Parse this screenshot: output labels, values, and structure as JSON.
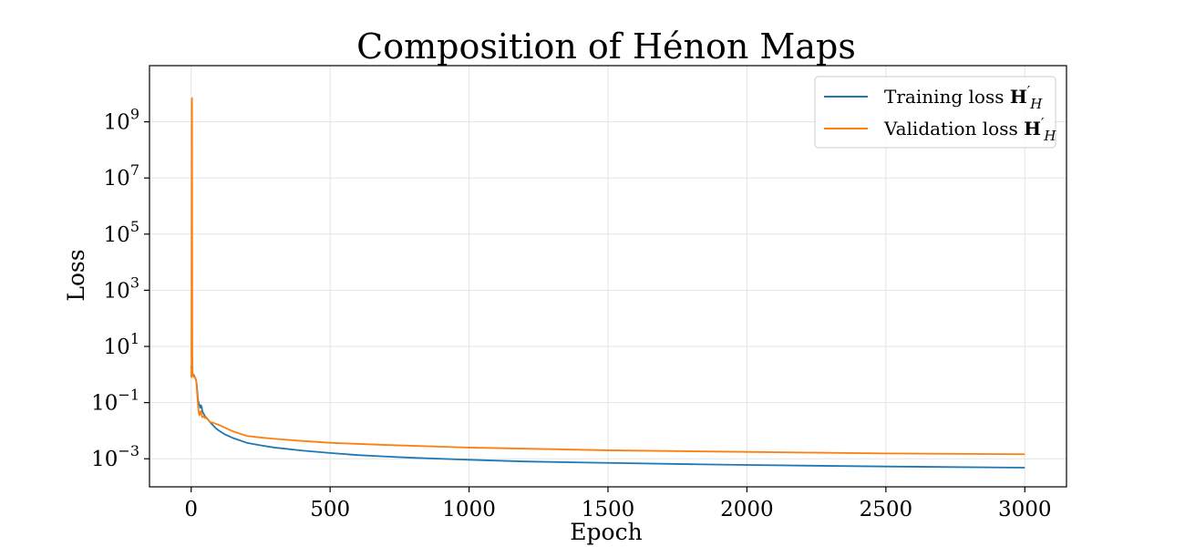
{
  "chart_data": {
    "type": "line",
    "title": "Composition of Hénon Maps",
    "xlabel": "Epoch",
    "ylabel": "Loss",
    "xlim": [
      -150,
      3150
    ],
    "ylim": [
      0.0001,
      100000000000
    ],
    "yscale": "log",
    "grid": true,
    "legend_position": "top-right",
    "x_ticks": [
      "0",
      "500",
      "1000",
      "1500",
      "2000",
      "2500",
      "3000"
    ],
    "y_ticks": [
      {
        "base": "10",
        "exp": "−3",
        "value": 0.001
      },
      {
        "base": "10",
        "exp": "−1",
        "value": 0.1
      },
      {
        "base": "10",
        "exp": "1",
        "value": 10
      },
      {
        "base": "10",
        "exp": "3",
        "value": 1000
      },
      {
        "base": "10",
        "exp": "5",
        "value": 100000
      },
      {
        "base": "10",
        "exp": "7",
        "value": 10000000
      },
      {
        "base": "10",
        "exp": "9",
        "value": 1000000000
      }
    ],
    "series": [
      {
        "name": "Training loss H′H",
        "legend": {
          "text": "Training loss ",
          "math": "H",
          "prime": "′",
          "sub": "H"
        },
        "color": "#1f77b4",
        "x": [
          0,
          1,
          2,
          3,
          5,
          8,
          10,
          12,
          15,
          18,
          20,
          22,
          25,
          28,
          30,
          33,
          35,
          38,
          40,
          42,
          45,
          48,
          50,
          55,
          60,
          65,
          70,
          80,
          90,
          100,
          120,
          150,
          200,
          250,
          300,
          400,
          500,
          600,
          700,
          800,
          1000,
          1200,
          1500,
          1800,
          2000,
          2500,
          3000
        ],
        "y": [
          2.0,
          1.6,
          1.3,
          1.1,
          1.0,
          1.0,
          0.95,
          0.85,
          0.75,
          0.6,
          0.45,
          0.25,
          0.12,
          0.09,
          0.08,
          0.065,
          0.08,
          0.07,
          0.05,
          0.045,
          0.04,
          0.035,
          0.032,
          0.028,
          0.025,
          0.022,
          0.019,
          0.015,
          0.012,
          0.01,
          0.0075,
          0.0055,
          0.0037,
          0.003,
          0.0025,
          0.00195,
          0.0016,
          0.00135,
          0.0012,
          0.00108,
          0.00092,
          0.0008,
          0.00071,
          0.00064,
          0.0006,
          0.00053,
          0.00048
        ]
      },
      {
        "name": "Validation loss H′H",
        "legend": {
          "text": "Validation loss ",
          "math": "H",
          "prime": "′",
          "sub": "H"
        },
        "color": "#ff7f0e",
        "x": [
          0,
          1,
          2,
          3,
          4,
          5,
          6,
          7,
          8,
          10,
          12,
          15,
          18,
          20,
          22,
          25,
          28,
          30,
          32,
          35,
          38,
          40,
          45,
          50,
          55,
          60,
          65,
          70,
          80,
          100,
          120,
          150,
          200,
          250,
          300,
          400,
          500,
          700,
          1000,
          1500,
          2000,
          2500,
          3000
        ],
        "y": [
          1.2,
          0.8,
          5000000000.0,
          7000000000.0,
          8.0,
          0.9,
          1.0,
          0.9,
          0.85,
          0.9,
          0.8,
          0.75,
          0.6,
          0.35,
          0.18,
          0.07,
          0.04,
          0.035,
          0.045,
          0.05,
          0.035,
          0.03,
          0.033,
          0.028,
          0.03,
          0.025,
          0.022,
          0.02,
          0.019,
          0.016,
          0.013,
          0.0095,
          0.0065,
          0.0057,
          0.0051,
          0.0043,
          0.0037,
          0.0031,
          0.0025,
          0.002,
          0.00175,
          0.00155,
          0.00145
        ]
      }
    ]
  }
}
